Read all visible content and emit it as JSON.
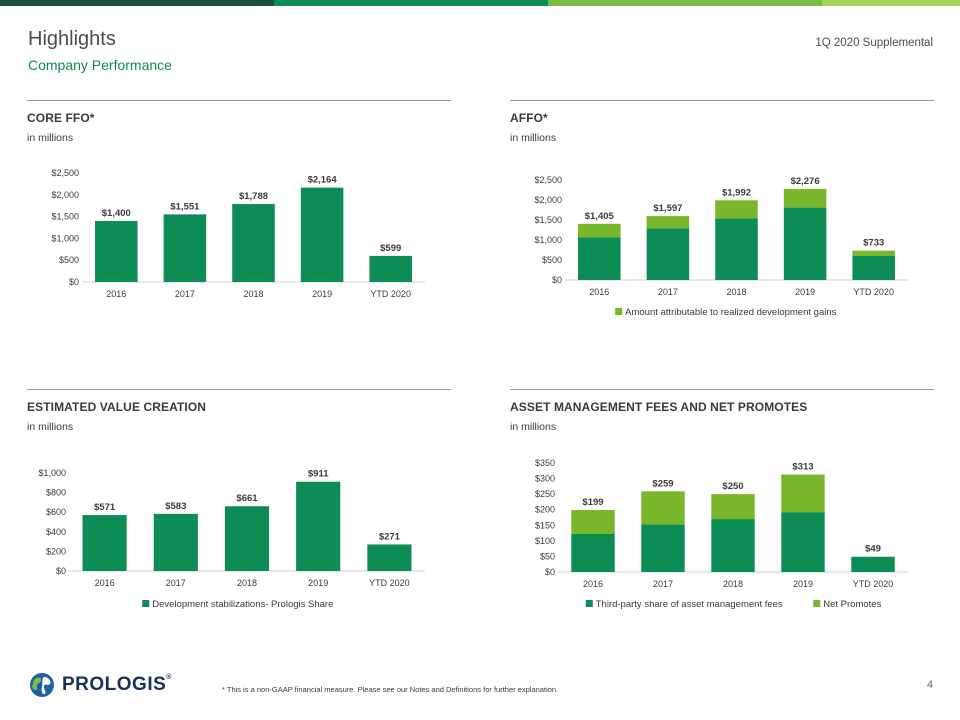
{
  "header": {
    "title": "Highlights",
    "subtitle": "Company Performance",
    "supplemental": "1Q 2020 Supplemental"
  },
  "colors": {
    "dark_green": "#0d8c55",
    "light_green": "#78b72a",
    "title_accent": "#0e8a4e",
    "topbar": [
      "#1c4e3e",
      "#0d8c55",
      "#78bd43",
      "#a4d35c"
    ]
  },
  "footer": {
    "note": "* This is a non-GAAP financial measure.  Please see our Notes and Definitions for further explanation.",
    "page_number": "4",
    "logo_text": "PROLOGIS",
    "logo_mark": "®"
  },
  "chart_data": [
    {
      "id": "core-ffo",
      "type": "bar",
      "title": "CORE FFO*",
      "unit": "in millions",
      "categories": [
        "2016",
        "2017",
        "2018",
        "2019",
        "YTD 2020"
      ],
      "series": [
        {
          "values": [
            1400,
            1551,
            1788,
            2164,
            599
          ]
        }
      ],
      "data_labels": [
        "$1,400",
        "$1,551",
        "$1,788",
        "$2,164",
        "$599"
      ],
      "yticks": [
        0,
        500,
        1000,
        1500,
        2000,
        2500
      ],
      "ytick_labels": [
        "$0",
        "$500",
        "$1,000",
        "$1,500",
        "$2,000",
        "$2,500"
      ],
      "ylim": [
        0,
        2500
      ],
      "legend": []
    },
    {
      "id": "affo",
      "type": "bar",
      "stacked": true,
      "title": "AFFO*",
      "unit": "in millions",
      "categories": [
        "2016",
        "2017",
        "2018",
        "2019",
        "YTD 2020"
      ],
      "series": [
        {
          "values": [
            1070,
            1290,
            1540,
            1810,
            600
          ]
        },
        {
          "name": "Amount attributable to realized development gains",
          "values": [
            335,
            307,
            452,
            466,
            133
          ]
        }
      ],
      "data_labels": [
        "$1,405",
        "$1,597",
        "$1,992",
        "$2,276",
        "$733"
      ],
      "yticks": [
        0,
        500,
        1000,
        1500,
        2000,
        2500
      ],
      "ytick_labels": [
        "$0",
        "$500",
        "$1,000",
        "$1,500",
        "$2,000",
        "$2,500"
      ],
      "ylim": [
        0,
        2500
      ],
      "legend": [
        {
          "label": "Amount attributable to realized development gains",
          "color": "#78b72a"
        }
      ]
    },
    {
      "id": "value-creation",
      "type": "bar",
      "title": "ESTIMATED VALUE CREATION",
      "unit": "in millions",
      "categories": [
        "2016",
        "2017",
        "2018",
        "2019",
        "YTD 2020"
      ],
      "series": [
        {
          "name": "Development stabilizations- Prologis Share",
          "values": [
            571,
            583,
            661,
            911,
            271
          ]
        }
      ],
      "data_labels": [
        "$571",
        "$583",
        "$661",
        "$911",
        "$271"
      ],
      "yticks": [
        0,
        200,
        400,
        600,
        800,
        1000
      ],
      "ytick_labels": [
        "$0",
        "$200",
        "$400",
        "$600",
        "$800",
        "$1,000"
      ],
      "ylim": [
        0,
        1000
      ],
      "legend": [
        {
          "label": "Development stabilizations- Prologis Share",
          "color": "#0d8c55"
        }
      ]
    },
    {
      "id": "asset-mgmt",
      "type": "bar",
      "stacked": true,
      "title": "ASSET MANAGEMENT FEES AND NET PROMOTES",
      "unit": "in millions",
      "categories": [
        "2016",
        "2017",
        "2018",
        "2019",
        "YTD 2020"
      ],
      "series": [
        {
          "name": "Third-party share of asset management fees",
          "values": [
            122,
            153,
            170,
            192,
            49
          ]
        },
        {
          "name": "Net Promotes",
          "values": [
            77,
            106,
            80,
            121,
            0
          ]
        }
      ],
      "data_labels": [
        "$199",
        "$259",
        "$250",
        "$313",
        "$49"
      ],
      "yticks": [
        0,
        50,
        100,
        150,
        200,
        250,
        300,
        350
      ],
      "ytick_labels": [
        "$0",
        "$50",
        "$100",
        "$150",
        "$200",
        "$250",
        "$300",
        "$350"
      ],
      "ylim": [
        0,
        350
      ],
      "legend": [
        {
          "label": "Third-party share of asset management fees",
          "color": "#0d8c55"
        },
        {
          "label": "Net Promotes",
          "color": "#78b72a"
        }
      ]
    }
  ]
}
